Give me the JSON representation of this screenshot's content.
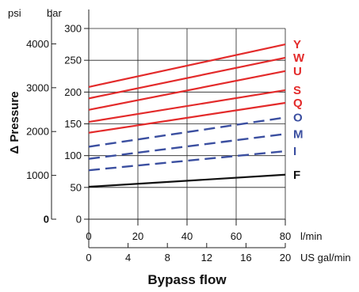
{
  "chart_data": {
    "type": "line",
    "ylabel": "Δ Pressure",
    "xlabel": "Bypass flow",
    "y_units": {
      "primary": "bar",
      "secondary": "psi"
    },
    "x_units": {
      "primary": "l/min",
      "secondary": "US gal/min"
    },
    "y_primary_ticks": [
      0,
      50,
      100,
      150,
      200,
      250,
      300
    ],
    "y_secondary_ticks": [
      0,
      1000,
      2000,
      3000,
      4000
    ],
    "y_secondary_tick_labels": [
      "0",
      "1000",
      "2000",
      "3000",
      "4000"
    ],
    "x_primary_ticks": [
      0,
      20,
      40,
      60,
      80
    ],
    "x_secondary_ticks": [
      0,
      4,
      8,
      12,
      16,
      20
    ],
    "ylim_bar": [
      0,
      300
    ],
    "ylim_psi": [
      0,
      4351
    ],
    "xlim_lpm": [
      0,
      80
    ],
    "grid": true,
    "series": [
      {
        "name": "Y",
        "color": "#e32b2b",
        "dash": false,
        "x": [
          0,
          80
        ],
        "y": [
          208,
          275
        ]
      },
      {
        "name": "W",
        "color": "#e32b2b",
        "dash": false,
        "x": [
          0,
          80
        ],
        "y": [
          190,
          254
        ]
      },
      {
        "name": "U",
        "color": "#e32b2b",
        "dash": false,
        "x": [
          0,
          80
        ],
        "y": [
          172,
          233
        ]
      },
      {
        "name": "S",
        "color": "#e32b2b",
        "dash": false,
        "x": [
          0,
          80
        ],
        "y": [
          153,
          203
        ]
      },
      {
        "name": "Q",
        "color": "#e32b2b",
        "dash": false,
        "x": [
          0,
          80
        ],
        "y": [
          136,
          183
        ]
      },
      {
        "name": "O",
        "color": "#3b4fa0",
        "dash": true,
        "x": [
          0,
          80
        ],
        "y": [
          114,
          160
        ]
      },
      {
        "name": "M",
        "color": "#3b4fa0",
        "dash": true,
        "x": [
          0,
          80
        ],
        "y": [
          95,
          134
        ]
      },
      {
        "name": "I",
        "color": "#3b4fa0",
        "dash": true,
        "x": [
          0,
          80
        ],
        "y": [
          77,
          107
        ]
      },
      {
        "name": "F",
        "color": "#111111",
        "dash": false,
        "x": [
          0,
          80
        ],
        "y": [
          51,
          70
        ]
      }
    ]
  }
}
